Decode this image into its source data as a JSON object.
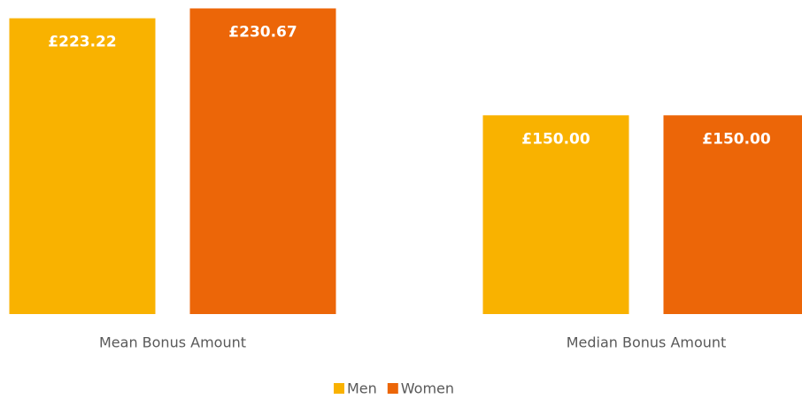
{
  "chart_data": {
    "type": "bar",
    "categories": [
      "Mean Bonus Amount",
      "Median Bonus Amount"
    ],
    "series": [
      {
        "name": "Men",
        "color": "#f9b200",
        "values": [
          223.22,
          150
        ],
        "value_labels": [
          "£223.22",
          "£150.00"
        ]
      },
      {
        "name": "Women",
        "color": "#ec6608",
        "values": [
          230.67,
          150
        ],
        "value_labels": [
          "£230.67",
          "£150.00"
        ]
      }
    ],
    "ylim": [
      0,
      235
    ],
    "legend": "bottom"
  }
}
